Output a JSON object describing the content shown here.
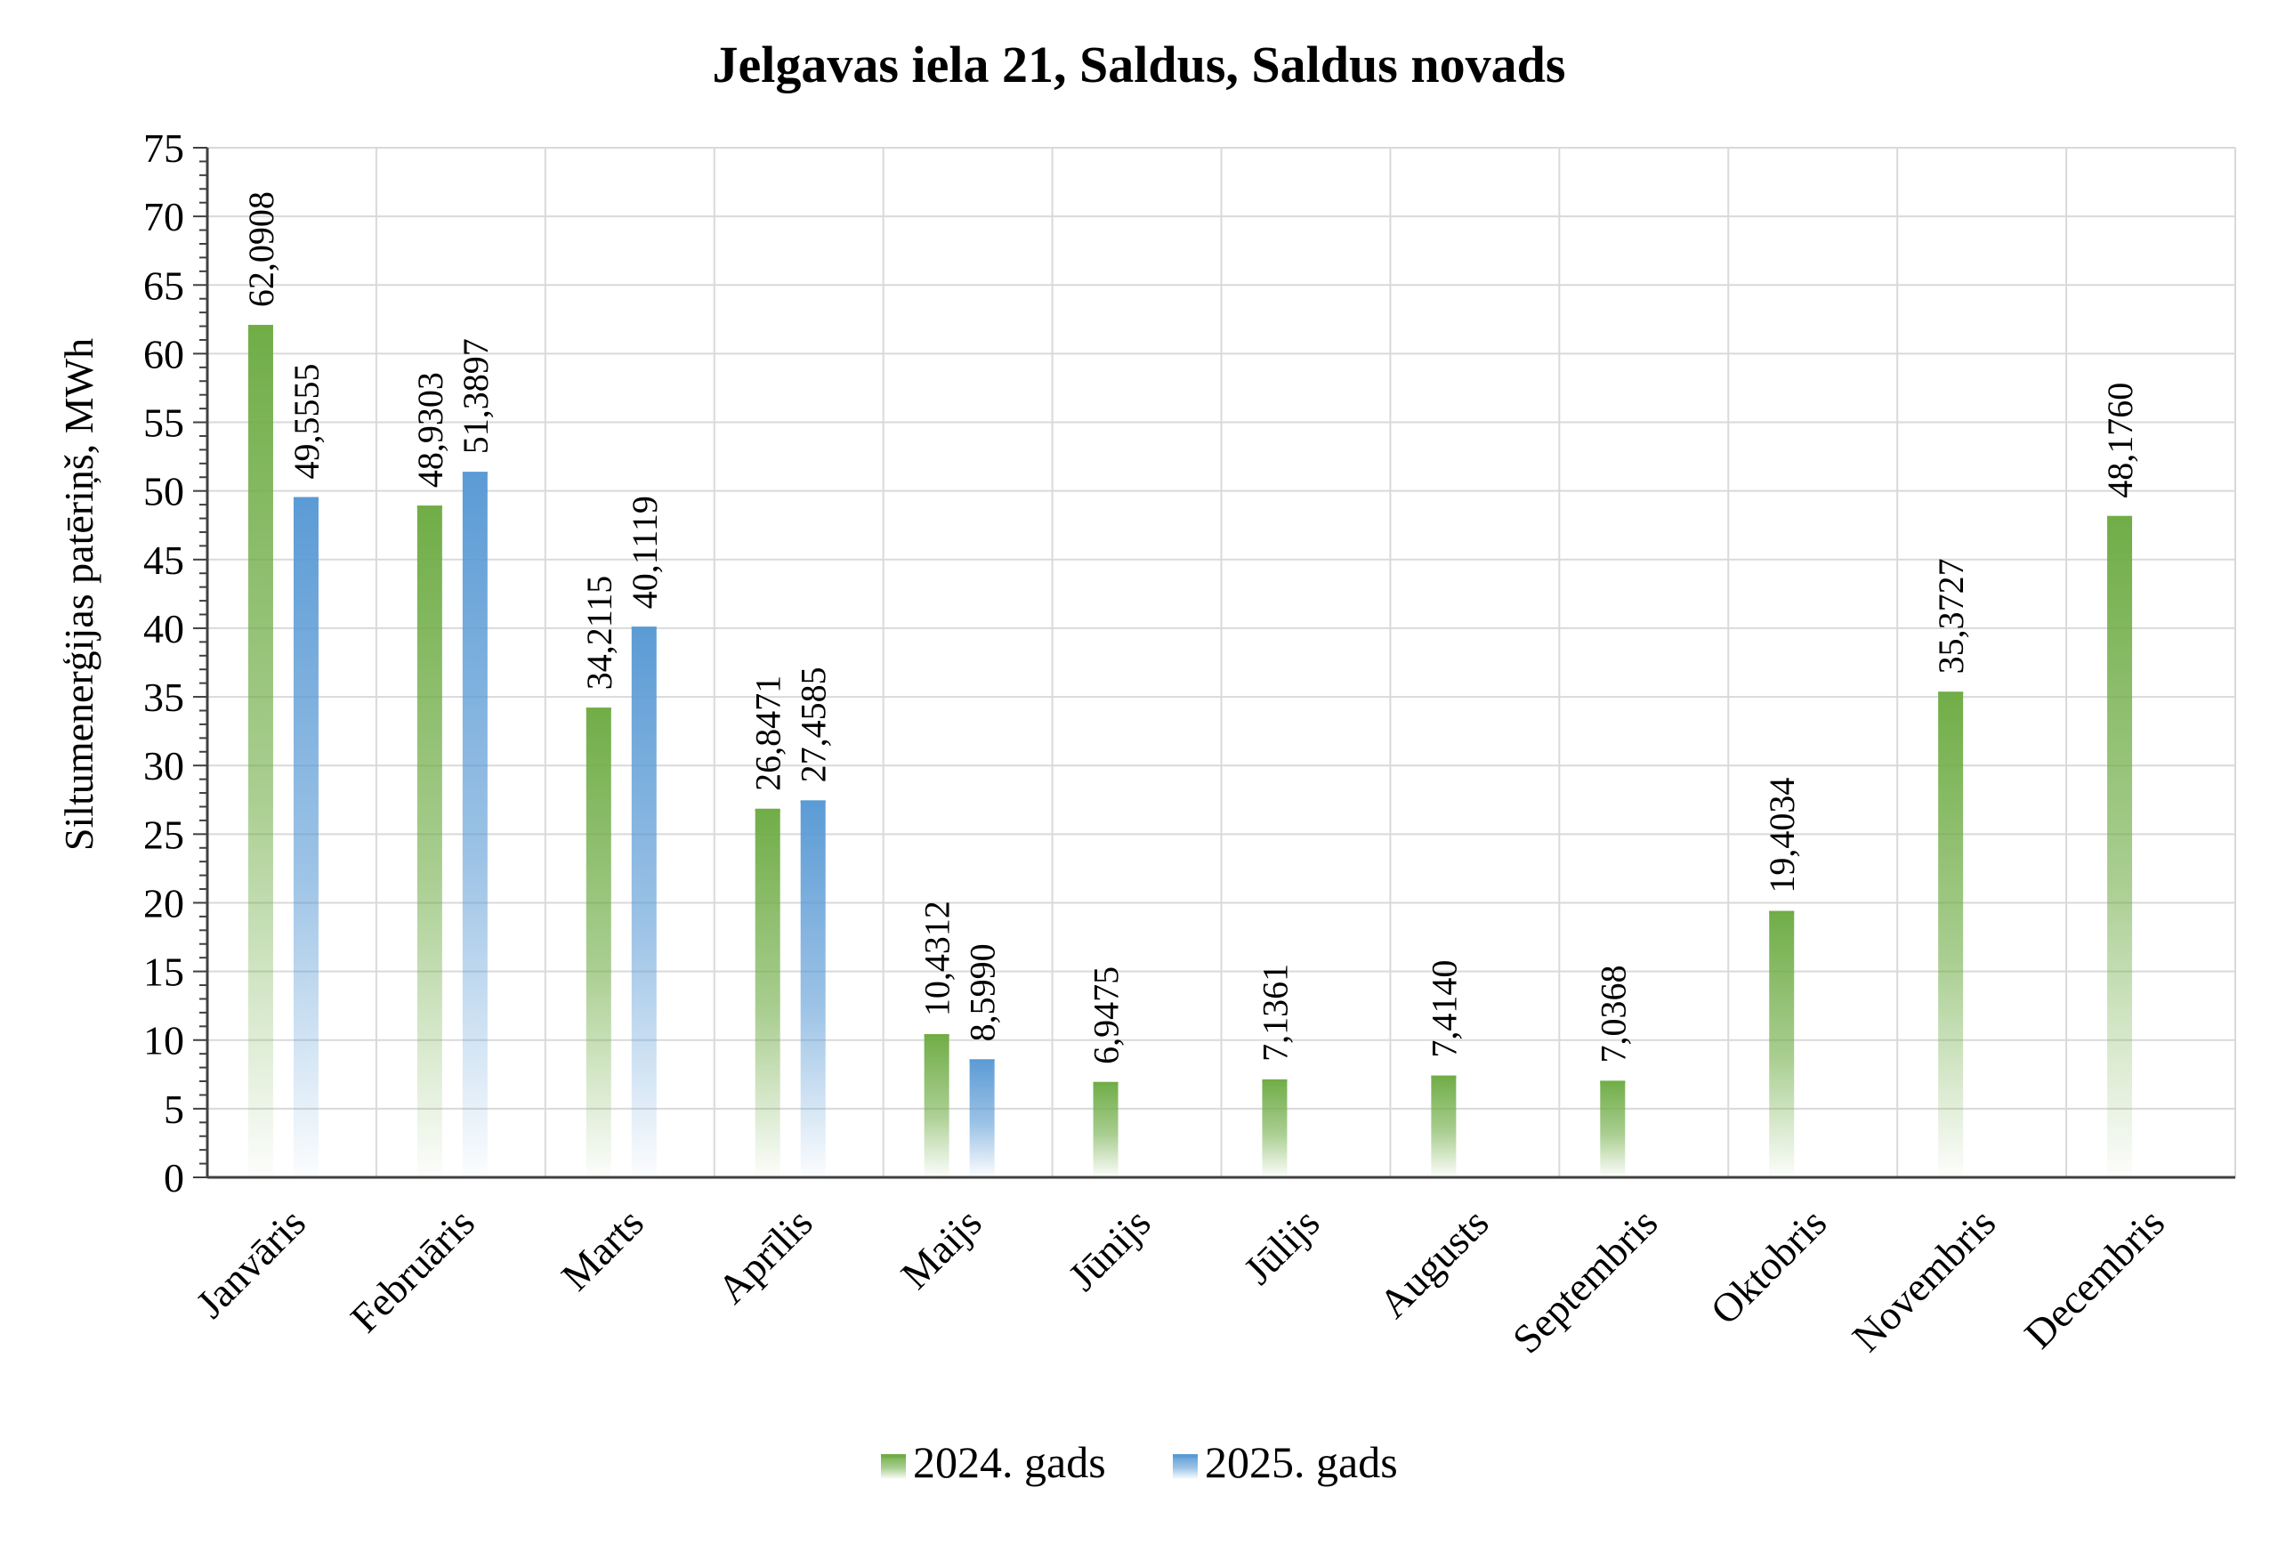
{
  "chart_data": {
    "type": "bar",
    "title": "Jelgavas iela 21, Saldus, Saldus novads",
    "xlabel": "",
    "ylabel": "Siltumenerģijas patēriņš, MWh",
    "ylim": [
      0,
      75
    ],
    "yticks": [
      0,
      5,
      10,
      15,
      20,
      25,
      30,
      35,
      40,
      45,
      50,
      55,
      60,
      65,
      70,
      75
    ],
    "grid": true,
    "legend_position": "bottom",
    "categories": [
      "Janvāris",
      "Februāris",
      "Marts",
      "Aprīlis",
      "Maijs",
      "Jūnijs",
      "Jūlijs",
      "Augusts",
      "Septembris",
      "Oktobris",
      "Novembris",
      "Decembris"
    ],
    "series": [
      {
        "name": "2024. gads",
        "color": "#70ad47",
        "values": [
          62.0908,
          48.9303,
          34.2115,
          26.8471,
          10.4312,
          6.9475,
          7.1361,
          7.414,
          7.0368,
          19.4034,
          35.3727,
          48.176
        ],
        "labels": [
          "62,0908",
          "48,9303",
          "34,2115",
          "26,8471",
          "10,4312",
          "6,9475",
          "7,1361",
          "7,4140",
          "7,0368",
          "19,4034",
          "35,3727",
          "48,1760"
        ]
      },
      {
        "name": "2025. gads",
        "color": "#5b9bd5",
        "values": [
          49.5555,
          51.3897,
          40.1119,
          27.4585,
          8.599,
          null,
          null,
          null,
          null,
          null,
          null,
          null
        ],
        "labels": [
          "49,5555",
          "51,3897",
          "40,1119",
          "27,4585",
          "8,5990",
          null,
          null,
          null,
          null,
          null,
          null,
          null
        ]
      }
    ]
  }
}
